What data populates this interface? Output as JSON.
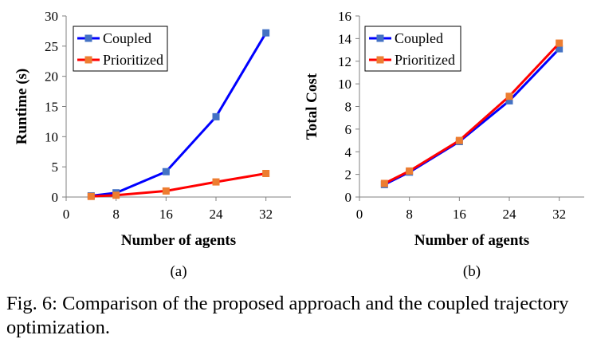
{
  "chart_data": [
    {
      "type": "line",
      "panel_label": "(a)",
      "xlabel": "Number of agents",
      "ylabel": "Runtime (s)",
      "xlim": [
        0,
        36
      ],
      "ylim": [
        0,
        30
      ],
      "xticks": [
        0,
        8,
        16,
        24,
        32
      ],
      "yticks": [
        0,
        5,
        10,
        15,
        20,
        25,
        30
      ],
      "legend_position": "top-left",
      "grid": false,
      "series": [
        {
          "name": "Coupled",
          "color": "#0000ff",
          "marker_color": "#4472c4",
          "x": [
            4,
            8,
            16,
            24,
            32
          ],
          "y": [
            0.2,
            0.7,
            4.2,
            13.3,
            27.2
          ]
        },
        {
          "name": "Prioritized",
          "color": "#ff0000",
          "marker_color": "#ed7d31",
          "x": [
            4,
            8,
            16,
            24,
            32
          ],
          "y": [
            0.1,
            0.3,
            1.0,
            2.5,
            3.9
          ]
        }
      ]
    },
    {
      "type": "line",
      "panel_label": "(b)",
      "xlabel": "Number of agents",
      "ylabel": "Total Cost",
      "xlim": [
        0,
        36
      ],
      "ylim": [
        0,
        16
      ],
      "xticks": [
        0,
        8,
        16,
        24,
        32
      ],
      "yticks": [
        0,
        2,
        4,
        6,
        8,
        10,
        12,
        14,
        16
      ],
      "legend_position": "top-left",
      "grid": false,
      "series": [
        {
          "name": "Coupled",
          "color": "#0000ff",
          "marker_color": "#4472c4",
          "x": [
            4,
            8,
            16,
            24,
            32
          ],
          "y": [
            1.1,
            2.2,
            4.9,
            8.5,
            13.1
          ]
        },
        {
          "name": "Prioritized",
          "color": "#ff0000",
          "marker_color": "#ed7d31",
          "x": [
            4,
            8,
            16,
            24,
            32
          ],
          "y": [
            1.2,
            2.3,
            5.0,
            8.9,
            13.6
          ]
        }
      ]
    }
  ],
  "caption": "Fig. 6: Comparison of the proposed approach and the coupled trajectory optimization."
}
